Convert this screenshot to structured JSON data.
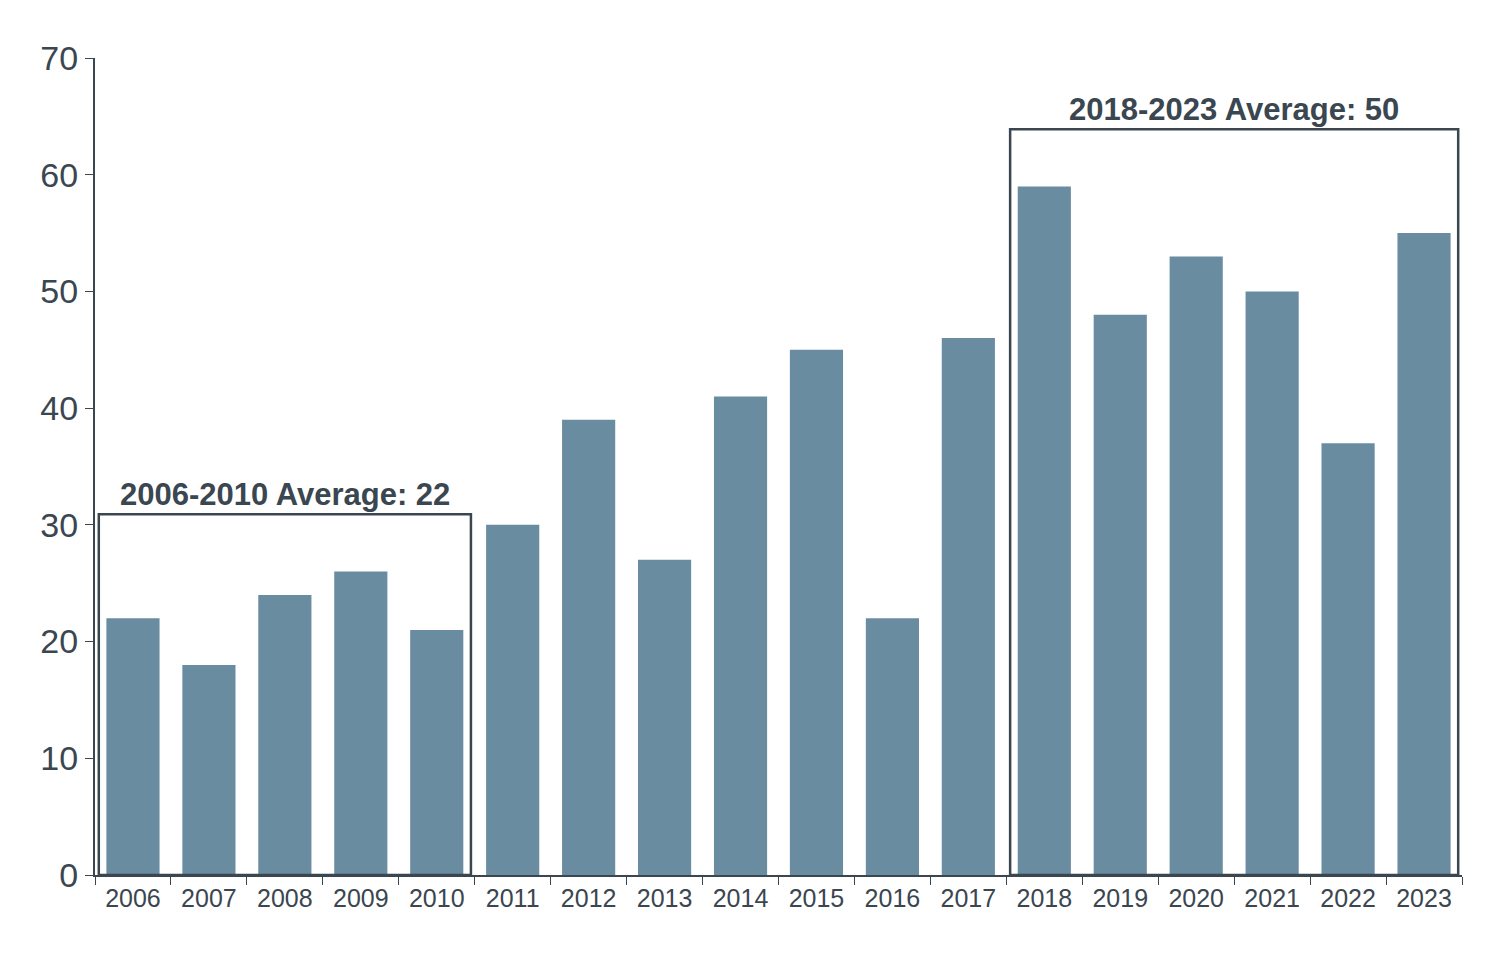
{
  "chart_data": {
    "type": "bar",
    "categories": [
      "2006",
      "2007",
      "2008",
      "2009",
      "2010",
      "2011",
      "2012",
      "2013",
      "2014",
      "2015",
      "2016",
      "2017",
      "2018",
      "2019",
      "2020",
      "2021",
      "2022",
      "2023"
    ],
    "values": [
      22,
      18,
      24,
      26,
      21,
      30,
      39,
      27,
      41,
      45,
      22,
      46,
      59,
      48,
      53,
      50,
      37,
      55
    ],
    "color": "#6a8ca0",
    "ylim": [
      0,
      70
    ],
    "yticks": [
      0,
      10,
      20,
      30,
      40,
      50,
      60,
      70
    ],
    "grid": false,
    "annotations": [
      {
        "text": "2006-2010 Average: 22",
        "start": "2006",
        "end": "2010"
      },
      {
        "text": "2018-2023 Average: 50",
        "start": "2018",
        "end": "2023"
      }
    ]
  }
}
